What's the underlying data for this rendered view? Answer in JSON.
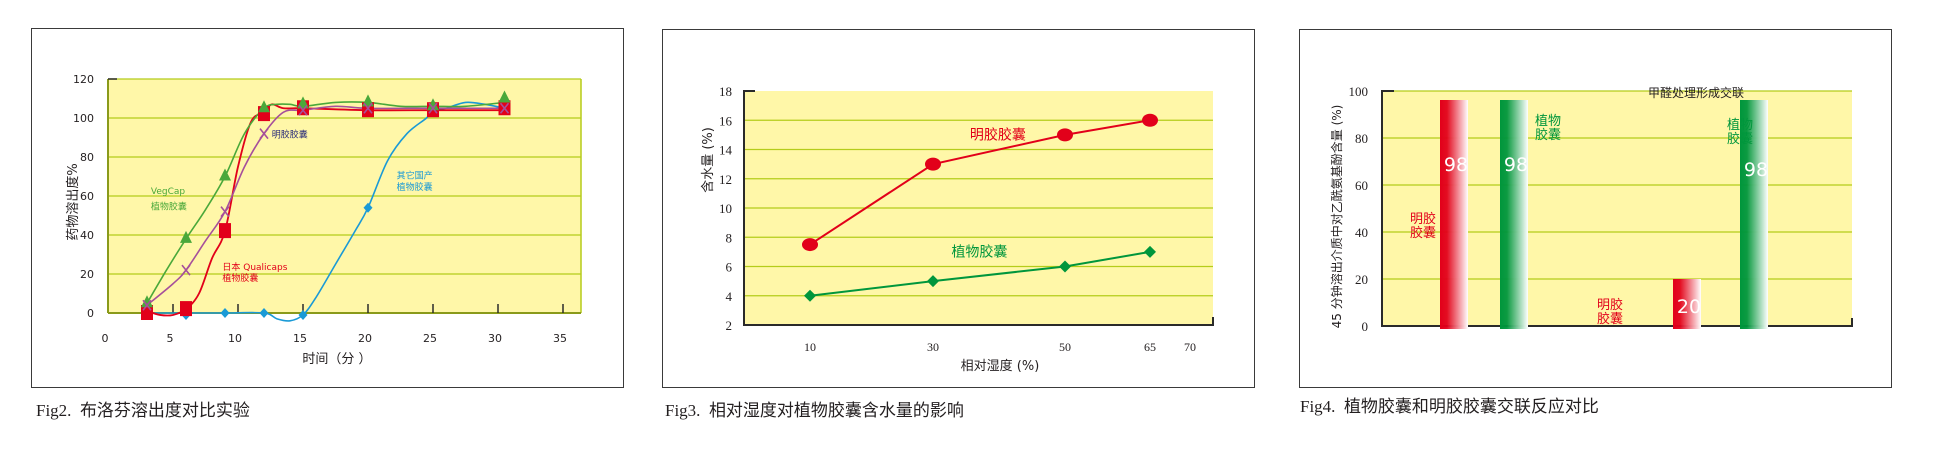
{
  "figures": [
    {
      "caption_prefix": "Fig2.",
      "caption_text": "布洛芬溶出度对比实验"
    },
    {
      "caption_prefix": "Fig3.",
      "caption_text": "相对湿度对植物胶囊含水量的影响"
    },
    {
      "caption_prefix": "Fig4.",
      "caption_text": "植物胶囊和明胶胶囊交联反应对比"
    }
  ],
  "colors": {
    "plot_bg": "#fff7a8",
    "grid": "#b5cc1a",
    "axis": "#2a2a2a",
    "red": "#e2001a",
    "green_dark": "#00963c",
    "green_light": "#4aa83a",
    "purple": "#a64f9b",
    "blue": "#1a9ad6",
    "navy": "#2b2d7a"
  },
  "chart_data": [
    {
      "type": "line",
      "title": "布洛芬溶出度对比实验",
      "xlabel": "时间（分 ）",
      "ylabel": "药物溶出度%",
      "xlim": [
        0,
        35
      ],
      "ylim": [
        0,
        120
      ],
      "xticks": [
        0,
        5,
        10,
        15,
        20,
        25,
        30,
        35
      ],
      "yticks": [
        0,
        20,
        40,
        60,
        80,
        100,
        120
      ],
      "grid": true,
      "series": [
        {
          "name": "VegCap 植物胶囊",
          "label_lines": [
            "VegCap",
            "植物胶囊"
          ],
          "color": "#4aa83a",
          "marker": "triangle",
          "x": [
            3,
            6,
            9,
            12,
            15,
            20,
            25,
            30.5
          ],
          "y": [
            5,
            38,
            70,
            105,
            107,
            108,
            106,
            110
          ],
          "curve_x": [
            3,
            4.5,
            6,
            7.5,
            9,
            10.5,
            12,
            13,
            14,
            15,
            17.5,
            20,
            22.5,
            25,
            27.5,
            30.5
          ],
          "curve_y": [
            5,
            22,
            38,
            53,
            70,
            92,
            105,
            107,
            107,
            106,
            108,
            108,
            106,
            106,
            106,
            108
          ]
        },
        {
          "name": "日本 Qualicaps 植物胶囊",
          "label_lines": [
            "日本 Qualicaps",
            "植物胶囊"
          ],
          "color": "#e2001a",
          "marker": "square",
          "x": [
            3,
            6,
            9,
            12,
            15,
            20,
            25,
            30.5
          ],
          "y": [
            0,
            2,
            42,
            102,
            105,
            104,
            104,
            105
          ],
          "curve_x": [
            3,
            4,
            5,
            6,
            7,
            8,
            9,
            10,
            11,
            12,
            12.6,
            13.5,
            15,
            20,
            25,
            30.5
          ],
          "curve_y": [
            1,
            -1,
            -1,
            2,
            10,
            28,
            42,
            75,
            98,
            103,
            107,
            105,
            105,
            104,
            104,
            104
          ]
        },
        {
          "name": "明胶胶囊",
          "label_lines": [
            "明胶胶囊"
          ],
          "color": "#a64f9b",
          "marker": "x",
          "x": [
            3,
            6,
            9,
            12,
            15,
            20,
            25,
            30.5
          ],
          "y": [
            4,
            22,
            52,
            92,
            104,
            105,
            105,
            105
          ],
          "curve_x": [
            3,
            5,
            6,
            7.5,
            9,
            10.5,
            12,
            13.5,
            15,
            17.5,
            20,
            25,
            30.5
          ],
          "curve_y": [
            4,
            15,
            22,
            37,
            52,
            75,
            92,
            103,
            104,
            106,
            105,
            105,
            105
          ]
        },
        {
          "name": "其它国产 植物胶囊",
          "label_lines": [
            "其它国产",
            "植物胶囊"
          ],
          "color": "#1a9ad6",
          "marker": "diamond",
          "x": [
            3,
            6,
            9,
            12,
            15,
            20,
            25,
            30.5
          ],
          "y": [
            0,
            -1,
            0,
            0,
            -1,
            54,
            104,
            105
          ],
          "curve_x": [
            3,
            6,
            9,
            12,
            13,
            14,
            15,
            16,
            17.5,
            19,
            20,
            21.5,
            23,
            24.5,
            25,
            26,
            27.5,
            29,
            30.5
          ],
          "curve_y": [
            0,
            0,
            0,
            0,
            -3,
            -4,
            -1,
            8,
            25,
            42,
            54,
            78,
            92,
            100,
            104,
            105,
            108,
            107,
            105
          ]
        }
      ],
      "annotations": [
        {
          "text": "VegCap",
          "x": 3.3,
          "y": 61,
          "color": "#4aa83a"
        },
        {
          "text": "植物胶囊",
          "x": 3.3,
          "y": 53,
          "color": "#4aa83a"
        },
        {
          "text": "明胶胶囊",
          "x": 12.6,
          "y": 90,
          "color": "#2b2d7a"
        },
        {
          "text": "日本 Qualicaps",
          "x": 8.8,
          "y": 22,
          "color": "#e2001a"
        },
        {
          "text": "植物胶囊",
          "x": 8.8,
          "y": 16.5,
          "color": "#e2001a"
        },
        {
          "text": "其它国产",
          "x": 22.2,
          "y": 69,
          "color": "#1a9ad6"
        },
        {
          "text": "植物胶囊",
          "x": 22.2,
          "y": 63,
          "color": "#1a9ad6"
        }
      ]
    },
    {
      "type": "line",
      "title": "相对湿度对植物胶囊含水量的影响",
      "xlabel": "相对湿度  (%)",
      "ylabel": "含水量  (%)",
      "xtick_labels": [
        "10",
        "30",
        "50",
        "65",
        "70"
      ],
      "xtick_positions": [
        10,
        30,
        50,
        65,
        70
      ],
      "ylim": [
        2,
        18
      ],
      "yticks": [
        2,
        4,
        6,
        8,
        10,
        12,
        14,
        16,
        18
      ],
      "grid": true,
      "series": [
        {
          "name": "明胶胶囊",
          "color": "#e2001a",
          "marker": "circle",
          "x": [
            10,
            30,
            50,
            65
          ],
          "y": [
            7.5,
            13,
            15,
            16
          ]
        },
        {
          "name": "植物胶囊",
          "color": "#00963c",
          "marker": "diamond",
          "x": [
            10,
            30,
            50,
            65
          ],
          "y": [
            4,
            5,
            6,
            7
          ]
        }
      ],
      "annotations": [
        {
          "text": "明胶胶囊",
          "x": 36,
          "y": 14.7,
          "color": "#e2001a"
        },
        {
          "text": "植物胶囊",
          "x": 33,
          "y": 6.7,
          "color": "#00963c"
        }
      ]
    },
    {
      "type": "bar",
      "title": "植物胶囊和明胶胶囊交联反应对比",
      "xlabel": "",
      "ylabel": "45 分钟溶出介质中对乙酰氨基酚含量  (%)",
      "ylim": [
        0,
        100
      ],
      "yticks": [
        0,
        20,
        40,
        60,
        80,
        100
      ],
      "grid": true,
      "groups": [
        {
          "label": "",
          "bars": [
            {
              "name": "明胶胶囊",
              "value": 98,
              "color": "#e2001a",
              "value_label": "98"
            },
            {
              "name": "植物胶囊",
              "value": 98,
              "color": "#00963c",
              "value_label": "98"
            }
          ]
        },
        {
          "label": "甲醛处理形成交联",
          "bars": [
            {
              "name": "明胶胶囊",
              "value": 20,
              "color": "#e2001a",
              "value_label": "20"
            },
            {
              "name": "植物胶囊",
              "value": 98,
              "color": "#00963c",
              "value_label": "98"
            }
          ]
        }
      ],
      "annotations": [
        {
          "text": "明胶\n胶囊",
          "color": "#e2001a"
        },
        {
          "text": "植物\n胶囊",
          "color": "#00963c"
        },
        {
          "text": "明胶\n胶囊",
          "color": "#e2001a"
        },
        {
          "text": "植物\n胶囊",
          "color": "#00963c"
        },
        {
          "text": "甲醛处理形成交联",
          "color": "#231f20"
        }
      ]
    }
  ]
}
